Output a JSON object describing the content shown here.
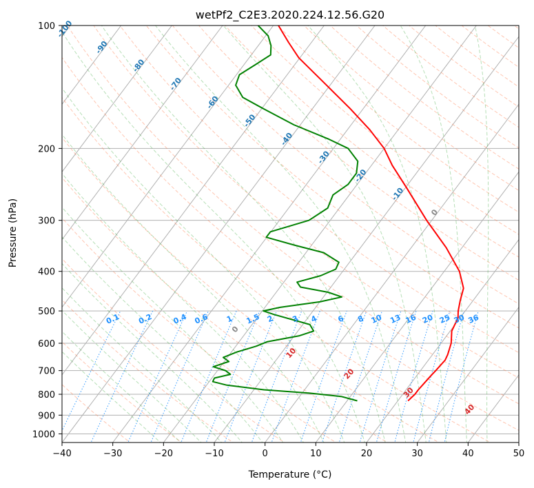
{
  "chart_data": {
    "type": "line",
    "subtype": "skew-T log-P diagram",
    "title": "wetPf2_C2E3.2020.224.12.56.G20",
    "xlabel": "Temperature (°C)",
    "ylabel": "Pressure (hPa)",
    "xlim": [
      -40,
      50
    ],
    "ylim": [
      1050,
      100
    ],
    "y_scale": "log",
    "x_ticks": [
      "-40",
      "-30",
      "-20",
      "-10",
      "0",
      "10",
      "20",
      "30",
      "40",
      "50"
    ],
    "x_tick_values": [
      -40,
      -30,
      -20,
      -10,
      0,
      10,
      20,
      30,
      40,
      50
    ],
    "y_ticks": [
      "100",
      "200",
      "300",
      "400",
      "500",
      "600",
      "700",
      "800",
      "900",
      "1000"
    ],
    "y_tick_values": [
      100,
      200,
      300,
      400,
      500,
      600,
      700,
      800,
      900,
      1000
    ],
    "grid": true,
    "series": [
      {
        "role": "temperature",
        "color": "#ff0000",
        "points": [
          [
            830,
            22.0
          ],
          [
            800,
            22.4
          ],
          [
            780,
            22.4
          ],
          [
            750,
            22.6
          ],
          [
            720,
            22.8
          ],
          [
            700,
            23.0
          ],
          [
            660,
            23.3
          ],
          [
            640,
            23.0
          ],
          [
            600,
            22.0
          ],
          [
            560,
            20.3
          ],
          [
            520,
            19.6
          ],
          [
            500,
            18.6
          ],
          [
            470,
            17.4
          ],
          [
            440,
            16.3
          ],
          [
            400,
            13.0
          ],
          [
            350,
            6.9
          ],
          [
            300,
            -1.0
          ],
          [
            250,
            -9.7
          ],
          [
            220,
            -15.9
          ],
          [
            200,
            -20.0
          ],
          [
            180,
            -25.6
          ],
          [
            160,
            -32.5
          ],
          [
            140,
            -40.7
          ],
          [
            120,
            -50.2
          ],
          [
            110,
            -54.5
          ],
          [
            100,
            -59.0
          ]
        ]
      },
      {
        "role": "dewpoint",
        "color": "#008000",
        "points": [
          [
            830,
            12.0
          ],
          [
            810,
            8.2
          ],
          [
            795,
            1.5
          ],
          [
            780,
            -8.0
          ],
          [
            760,
            -16.0
          ],
          [
            745,
            -19.3
          ],
          [
            730,
            -19.5
          ],
          [
            715,
            -16.9
          ],
          [
            700,
            -18.4
          ],
          [
            685,
            -21.4
          ],
          [
            665,
            -19.1
          ],
          [
            650,
            -20.8
          ],
          [
            630,
            -18.9
          ],
          [
            610,
            -16.0
          ],
          [
            595,
            -14.5
          ],
          [
            575,
            -9.0
          ],
          [
            560,
            -6.9
          ],
          [
            540,
            -8.6
          ],
          [
            510,
            -17.2
          ],
          [
            500,
            -19.8
          ],
          [
            490,
            -17.0
          ],
          [
            475,
            -10.0
          ],
          [
            462,
            -6.4
          ],
          [
            450,
            -9.8
          ],
          [
            437,
            -16.0
          ],
          [
            425,
            -17.4
          ],
          [
            410,
            -13.7
          ],
          [
            395,
            -11.7
          ],
          [
            380,
            -12.1
          ],
          [
            360,
            -16.5
          ],
          [
            345,
            -23.4
          ],
          [
            330,
            -30.1
          ],
          [
            320,
            -30.1
          ],
          [
            300,
            -24.2
          ],
          [
            280,
            -22.3
          ],
          [
            260,
            -23.2
          ],
          [
            245,
            -21.8
          ],
          [
            230,
            -21.8
          ],
          [
            215,
            -23.3
          ],
          [
            200,
            -27.1
          ],
          [
            190,
            -32.2
          ],
          [
            175,
            -41.3
          ],
          [
            160,
            -49.6
          ],
          [
            150,
            -55.4
          ],
          [
            140,
            -58.6
          ],
          [
            132,
            -59.4
          ],
          [
            125,
            -57.8
          ],
          [
            118,
            -56.2
          ],
          [
            112,
            -57.5
          ],
          [
            106,
            -59.5
          ],
          [
            100,
            -63.0
          ]
        ]
      }
    ],
    "reference_lines": {
      "dry_adiabats": {
        "style": "dashed",
        "color": "#ff7f50",
        "labels": [
          "-100",
          "-90",
          "-80",
          "-70",
          "-60",
          "-50",
          "-40",
          "-30",
          "-20",
          "-10",
          "0",
          "10",
          "20",
          "30",
          "40"
        ]
      },
      "moist_adiabats": {
        "style": "dashed",
        "color": "#2ca02c",
        "labels": [
          "0",
          "10",
          "20",
          "30",
          "40"
        ]
      },
      "mixing_ratio": {
        "style": "dotted",
        "color": "#1e90ff",
        "pressure_top": 500,
        "labels": [
          "0.1",
          "0.2",
          "0.4",
          "0.6",
          "1",
          "1.5",
          "2",
          "3",
          "4",
          "6",
          "8",
          "10",
          "13",
          "16",
          "20",
          "25",
          "30",
          "36"
        ]
      }
    }
  }
}
